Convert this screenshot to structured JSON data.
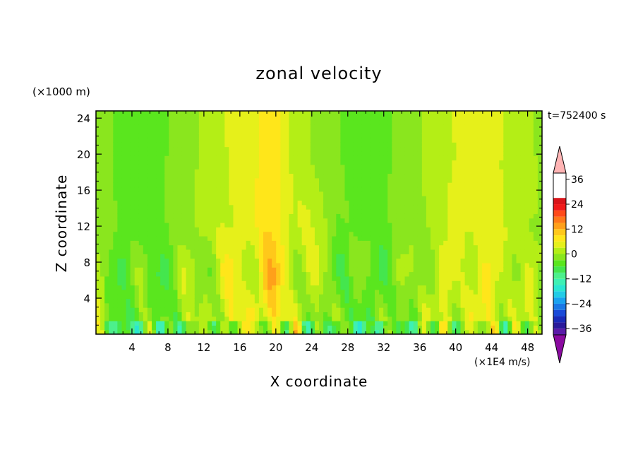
{
  "chart_data": {
    "type": "heatmap",
    "title": "zonal velocity",
    "xlabel": "X coordinate",
    "ylabel": "Z coordinate",
    "y_unit_label": "(×1000 m)",
    "colorbar_unit_label": "(×1E4 m/s)",
    "time_label": "t=752400 s",
    "xlim": [
      0,
      49.6
    ],
    "ylim": [
      0,
      24.8
    ],
    "x_ticks": [
      4,
      8,
      12,
      16,
      20,
      24,
      28,
      32,
      36,
      40,
      44,
      48
    ],
    "y_ticks": [
      4,
      8,
      12,
      16,
      20,
      24
    ],
    "colorbar": {
      "range": [
        -42,
        42
      ],
      "step": 3,
      "tick_values": [
        36,
        24,
        12,
        0,
        -12,
        -24,
        -36
      ],
      "extend": "both",
      "colors": [
        "#8a0aa0",
        "#5a1aa8",
        "#2a1a9a",
        "#1a2ab8",
        "#1a4ad8",
        "#1a78e6",
        "#1aa2f0",
        "#22cce6",
        "#2ae6d2",
        "#3ef0b4",
        "#4cf08c",
        "#44e64e",
        "#5ae61e",
        "#8ae61e",
        "#b4ee16",
        "#e6f01a",
        "#ffe61a",
        "#ffc81a",
        "#ffa01a",
        "#ff781a",
        "#ff4a1a",
        "#f01a1a",
        "#d8141a",
        "#ffb4b4"
      ]
    },
    "grid": false
  }
}
